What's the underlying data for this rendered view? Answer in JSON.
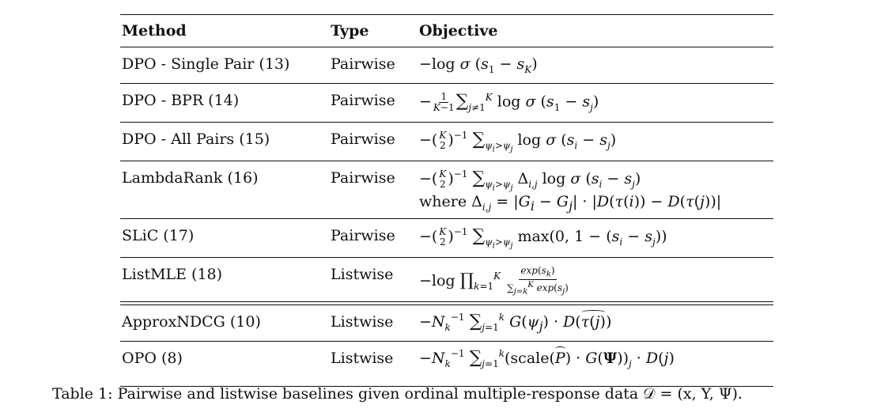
{
  "table": {
    "headers": {
      "method": "Method",
      "type": "Type",
      "objective": "Objective"
    },
    "rows": [
      {
        "method": "DPO - Single Pair (13)",
        "type": "Pairwise",
        "objective": "−log σ (s₁ − s_K)"
      },
      {
        "method": "DPO - BPR (14)",
        "type": "Pairwise",
        "objective": "−1/(K−1) ∑_{j≠1}^{K} log σ (s₁ − s_j)"
      },
      {
        "method": "DPO - All Pairs (15)",
        "type": "Pairwise",
        "objective": "−(K choose 2)^{−1} ∑_{ψ_i>ψ_j} log σ (s_i − s_j)"
      },
      {
        "method": "LambdaRank (16)",
        "type": "Pairwise",
        "objective": "−(K choose 2)^{−1} ∑_{ψ_i>ψ_j} Δ_{i,j} log σ (s_i − s_j)",
        "objective_line2": "where Δ_{i,j} = |G_i − G_j| · |D(τ(i)) − D(τ(j))|"
      },
      {
        "method": "SLiC (17)",
        "type": "Pairwise",
        "objective": "−(K choose 2)^{−1} ∑_{ψ_i>ψ_j} max(0, 1 − (s_i − s_j))"
      },
      {
        "method": "ListMLE (18)",
        "type": "Listwise",
        "objective": "−log ∏_{k=1}^{K} exp(s_k) / ∑_{j=k}^{K} exp(s_j)"
      },
      {
        "method": "ApproxNDCG (10)",
        "type": "Listwise",
        "objective": "−N_k^{−1} ∑_{j=1}^{k} G(ψ_j) · D(τ̂(j))"
      },
      {
        "method": "OPO (8)",
        "type": "Listwise",
        "objective": "−N_k^{−1} ∑_{j=1}^{k} (scale(P̂) · G(Ψ))_j · D(j)"
      }
    ]
  },
  "caption": "Table 1: Pairwise and listwise baselines given ordinal multiple-response data 𝒟 = (x, Y, Ψ)."
}
